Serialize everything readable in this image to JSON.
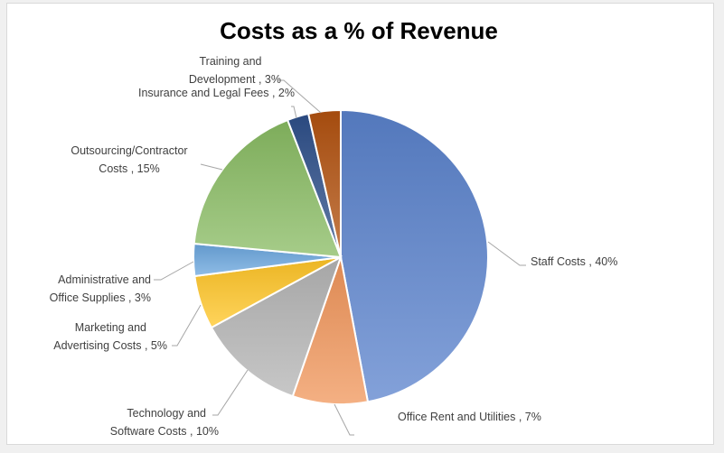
{
  "chart_data": {
    "type": "pie",
    "title": "Costs as a % of Revenue",
    "categories": [
      "Staff Costs",
      "Office Rent and Utilities",
      "Technology and Software Costs",
      "Marketing and Advertising Costs",
      "Administrative and Office Supplies",
      "Outsourcing/Contractor Costs",
      "Insurance and Legal Fees",
      "Training and Development"
    ],
    "values": [
      40,
      7,
      10,
      5,
      3,
      15,
      2,
      3
    ],
    "unit": "%",
    "colors": [
      "#5a82cc",
      "#f0955a",
      "#b4b4b4",
      "#ffc526",
      "#6aa6de",
      "#88bb62",
      "#2e4f8a",
      "#b2520f"
    ],
    "labels": [
      [
        "Staff Costs , 40%"
      ],
      [
        "Office Rent and Utilities , 7%"
      ],
      [
        "Technology and",
        "Software Costs , 10%"
      ],
      [
        "Marketing and",
        "Advertising Costs , 5%"
      ],
      [
        "Administrative and",
        "Office Supplies , 3%"
      ],
      [
        "Outsourcing/Contractor",
        "Costs , 15%"
      ],
      [
        "Insurance and Legal Fees , 2%"
      ],
      [
        "Training and",
        "Development , 3%"
      ]
    ],
    "legend": "none"
  }
}
